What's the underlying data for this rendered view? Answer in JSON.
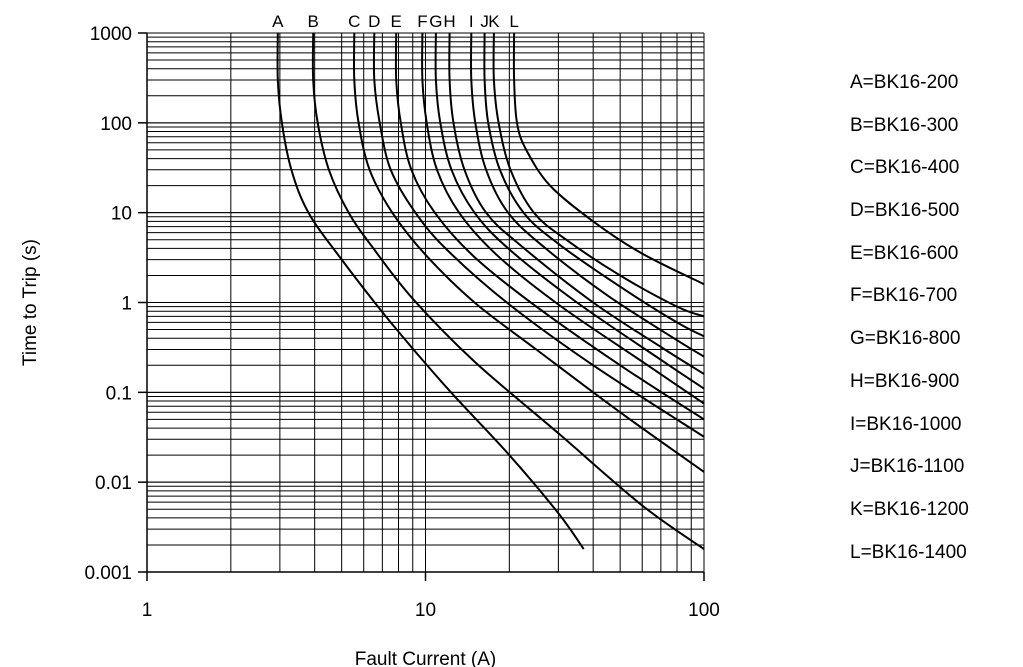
{
  "chart_data": {
    "type": "line",
    "title": "",
    "xlabel": "Fault Current (A)",
    "ylabel": "Time to Trip (s)",
    "x_scale": "log",
    "y_scale": "log",
    "xlim": [
      1,
      100
    ],
    "ylim": [
      0.001,
      1000
    ],
    "x_ticks": [
      1,
      10,
      100
    ],
    "x_tick_labels": [
      "1",
      "10",
      "100"
    ],
    "y_ticks": [
      0.001,
      0.01,
      0.1,
      1,
      10,
      100,
      1000
    ],
    "y_tick_labels": [
      "0.001",
      "0.01",
      "0.1",
      "1",
      "10",
      "100",
      "1000"
    ],
    "grid": true,
    "legend_position": "right",
    "series": [
      {
        "name": "A",
        "legend": "A=BK16-200",
        "x": [
          2.95,
          2.95,
          3.05,
          3.3,
          3.8,
          5,
          7.5,
          12,
          20,
          30,
          37
        ],
        "y": [
          1000,
          300,
          100,
          30,
          10,
          3,
          0.6,
          0.11,
          0.02,
          0.0045,
          0.0018
        ]
      },
      {
        "name": "B",
        "legend": "B=BK16-300",
        "x": [
          3.95,
          3.95,
          4.1,
          4.5,
          5.3,
          6.5,
          9,
          15,
          30,
          60,
          100
        ],
        "y": [
          1000,
          300,
          100,
          30,
          10,
          4,
          1.1,
          0.22,
          0.035,
          0.0055,
          0.0018
        ]
      },
      {
        "name": "C",
        "legend": "C=BK16-400",
        "x": [
          5.55,
          5.55,
          5.75,
          6.3,
          7.6,
          10,
          15,
          25,
          50,
          100
        ],
        "y": [
          1000,
          300,
          100,
          30,
          10,
          3.4,
          1.0,
          0.3,
          0.06,
          0.013
        ]
      },
      {
        "name": "D",
        "legend": "D=BK16-500",
        "x": [
          6.55,
          6.55,
          6.85,
          7.5,
          9.2,
          12,
          20,
          40,
          100
        ],
        "y": [
          1000,
          300,
          100,
          30,
          10,
          3.8,
          0.95,
          0.2,
          0.032
        ]
      },
      {
        "name": "E",
        "legend": "E=BK16-600",
        "x": [
          7.85,
          7.85,
          8.15,
          8.9,
          10.8,
          15,
          25,
          50,
          100
        ],
        "y": [
          1000,
          300,
          100,
          30,
          10,
          3.2,
          0.9,
          0.2,
          0.05
        ]
      },
      {
        "name": "F",
        "legend": "F=BK16-700",
        "x": [
          9.75,
          9.75,
          10.1,
          11,
          13.2,
          18,
          30,
          60,
          100
        ],
        "y": [
          1000,
          300,
          100,
          30,
          10,
          3.4,
          0.95,
          0.22,
          0.075
        ]
      },
      {
        "name": "G",
        "legend": "G=BK16-800",
        "x": [
          10.9,
          10.9,
          11.3,
          12.4,
          15,
          20,
          35,
          70,
          100
        ],
        "y": [
          1000,
          300,
          100,
          30,
          10,
          3.9,
          1.0,
          0.23,
          0.11
        ]
      },
      {
        "name": "H",
        "legend": "H=BK16-900",
        "x": [
          12.2,
          12.2,
          12.6,
          13.8,
          16.5,
          22,
          40,
          70,
          100
        ],
        "y": [
          1000,
          300,
          100,
          30,
          10,
          4.3,
          1.0,
          0.32,
          0.16
        ]
      },
      {
        "name": "I",
        "legend": "I=BK16-1000",
        "x": [
          14.6,
          14.6,
          15.1,
          16.5,
          19.8,
          27,
          45,
          80,
          100
        ],
        "y": [
          1000,
          300,
          100,
          30,
          10,
          4.0,
          1.2,
          0.38,
          0.25
        ]
      },
      {
        "name": "J",
        "legend": "J=BK16-1100",
        "x": [
          16.3,
          16.3,
          16.8,
          18.5,
          22.5,
          30,
          50,
          80,
          100
        ],
        "y": [
          1000,
          300,
          100,
          30,
          10,
          4.5,
          1.5,
          0.6,
          0.42
        ]
      },
      {
        "name": "K",
        "legend": "K=BK16-1200",
        "x": [
          17.6,
          17.6,
          18.3,
          20.2,
          24.5,
          32,
          50,
          80,
          100
        ],
        "y": [
          1000,
          300,
          100,
          30,
          10,
          5.0,
          2.0,
          0.9,
          0.7
        ]
      },
      {
        "name": "L",
        "legend": "L=BK16-1400",
        "x": [
          20.8,
          20.8,
          21.3,
          23,
          28,
          40,
          60,
          100
        ],
        "y": [
          1000,
          300,
          100,
          50,
          20,
          8,
          3.5,
          1.6
        ]
      }
    ]
  }
}
